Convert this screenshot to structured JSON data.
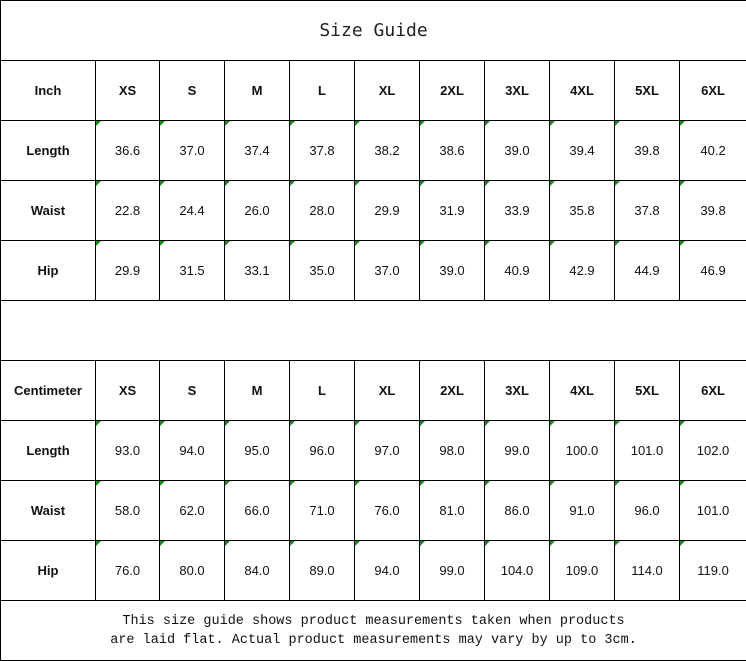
{
  "title": "Size Guide",
  "sizes": [
    "XS",
    "S",
    "M",
    "L",
    "XL",
    "2XL",
    "3XL",
    "4XL",
    "5XL",
    "6XL"
  ],
  "tables": [
    {
      "unit": "Inch",
      "rows": [
        {
          "label": "Length",
          "values": [
            "36.6",
            "37.0",
            "37.4",
            "37.8",
            "38.2",
            "38.6",
            "39.0",
            "39.4",
            "39.8",
            "40.2"
          ]
        },
        {
          "label": "Waist",
          "values": [
            "22.8",
            "24.4",
            "26.0",
            "28.0",
            "29.9",
            "31.9",
            "33.9",
            "35.8",
            "37.8",
            "39.8"
          ]
        },
        {
          "label": "Hip",
          "values": [
            "29.9",
            "31.5",
            "33.1",
            "35.0",
            "37.0",
            "39.0",
            "40.9",
            "42.9",
            "44.9",
            "46.9"
          ]
        }
      ]
    },
    {
      "unit": "Centimeter",
      "rows": [
        {
          "label": "Length",
          "values": [
            "93.0",
            "94.0",
            "95.0",
            "96.0",
            "97.0",
            "98.0",
            "99.0",
            "100.0",
            "101.0",
            "102.0"
          ]
        },
        {
          "label": "Waist",
          "values": [
            "58.0",
            "62.0",
            "66.0",
            "71.0",
            "76.0",
            "81.0",
            "86.0",
            "91.0",
            "96.0",
            "101.0"
          ]
        },
        {
          "label": "Hip",
          "values": [
            "76.0",
            "80.0",
            "84.0",
            "89.0",
            "94.0",
            "99.0",
            "104.0",
            "109.0",
            "114.0",
            "119.0"
          ]
        }
      ]
    }
  ],
  "note": {
    "line1": "This size guide shows product measurements taken when products",
    "line2": "are laid flat. Actual product measurements may vary by up to 3cm."
  },
  "colors": {
    "text_marker": "#1a8a1a",
    "border": "#000000"
  }
}
